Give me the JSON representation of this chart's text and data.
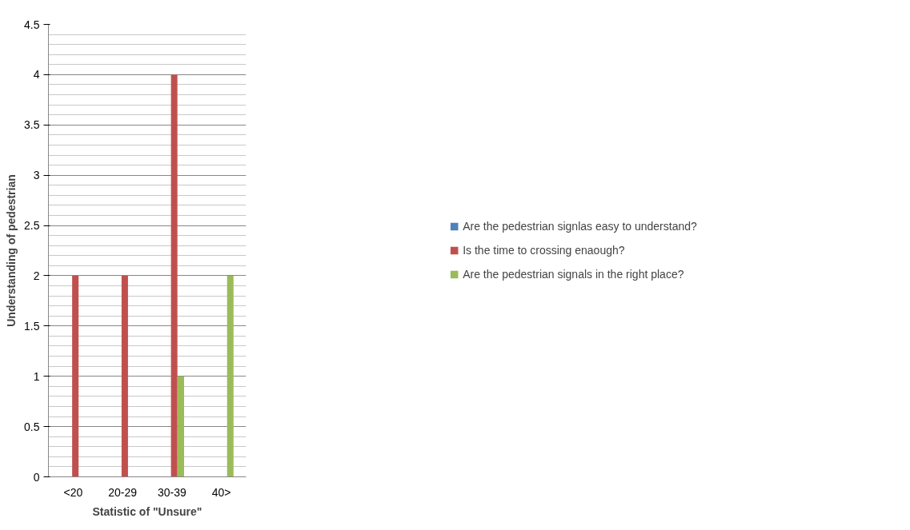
{
  "chart_data": {
    "type": "bar",
    "xlabel": "Statistic of \"Unsure\"",
    "ylabel": "Understanding of pedestrian",
    "categories": [
      "<20",
      "20-29",
      "30-39",
      "40>"
    ],
    "series": [
      {
        "name": "Are the pedestrian signlas easy to understand?",
        "color": "#4f81bd",
        "values": [
          0,
          0,
          0,
          0
        ]
      },
      {
        "name": "Is the time to crossing enaough?",
        "color": "#c0504d",
        "values": [
          2,
          2,
          4,
          0
        ]
      },
      {
        "name": "Are the pedestrian signals in the right place?",
        "color": "#9bbb59",
        "values": [
          0,
          0,
          1,
          2
        ]
      }
    ],
    "ylim": [
      0,
      4.5
    ],
    "yticks": [
      0,
      0.5,
      1,
      1.5,
      2,
      2.5,
      3,
      3.5,
      4,
      4.5
    ],
    "grid": "y",
    "legend": "right"
  }
}
